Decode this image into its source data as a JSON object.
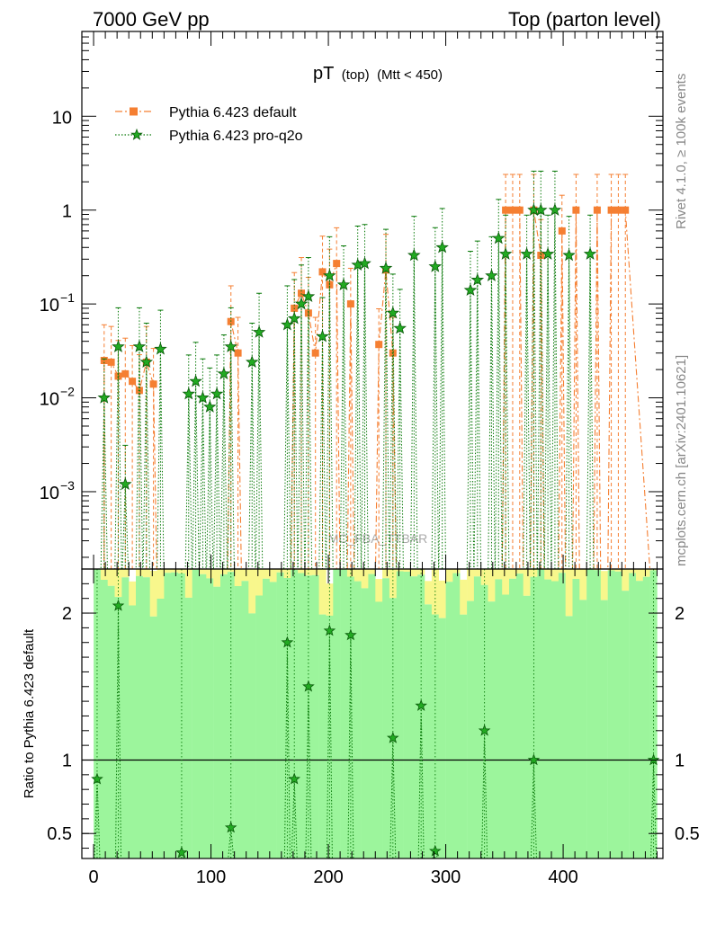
{
  "header": {
    "left": "7000 GeV pp",
    "right": "Top (parton level)"
  },
  "side_labels": {
    "rivet": "Rivet 4.1.0, ≥ 100k events",
    "mcplots": "mcplots.cern.ch [arXiv:2401.10621]"
  },
  "watermark": "MC_FBA_TTBAR",
  "colors": {
    "default": "#f57f32",
    "pro_q2o": "#0a7a0a",
    "band_green": "#9cf59c",
    "band_yellow": "#f8f78c"
  },
  "chart_data": [
    {
      "type": "scatter",
      "title": "pT",
      "title_suffix": "(top)",
      "title_cut": "(Mtt < 450)",
      "yscale": "log",
      "xlim": [
        -10,
        485
      ],
      "ylim": [
        0.00015,
        80
      ],
      "ytick_labels": [
        {
          "value": 10,
          "base": "10",
          "exp": ""
        },
        {
          "value": 1,
          "base": "1",
          "exp": ""
        },
        {
          "value": 0.1,
          "base": "10",
          "exp": "−1"
        },
        {
          "value": 0.01,
          "base": "10",
          "exp": "−2"
        },
        {
          "value": 0.001,
          "base": "10",
          "exp": "−3"
        }
      ],
      "legend": [
        "Pythia 6.423 default",
        "Pythia 6.423 pro-q2o"
      ],
      "series": [
        {
          "name": "Pythia 6.423 default",
          "style": "dashdot-square",
          "points": [
            [
              9,
              0.025
            ],
            [
              15,
              0.024
            ],
            [
              21,
              0.017
            ],
            [
              27,
              0.018
            ],
            [
              33,
              0.015
            ],
            [
              39,
              0.012
            ],
            [
              45,
              0.024
            ],
            [
              51,
              0.014
            ],
            [
              117,
              0.065
            ],
            [
              123,
              0.03
            ],
            [
              171,
              0.09
            ],
            [
              177,
              0.13
            ],
            [
              183,
              0.08
            ],
            [
              189,
              0.03
            ],
            [
              195,
              0.22
            ],
            [
              201,
              0.16
            ],
            [
              207,
              0.27
            ],
            [
              219,
              0.1
            ],
            [
              243,
              0.037
            ],
            [
              249,
              0.23
            ],
            [
              255,
              0.03
            ],
            [
              351,
              1.0
            ],
            [
              357,
              1.0
            ],
            [
              363,
              1.0
            ],
            [
              375,
              1.0
            ],
            [
              381,
              0.33
            ],
            [
              399,
              0.6
            ],
            [
              411,
              1.0
            ],
            [
              429,
              1.0
            ],
            [
              441,
              1.0
            ],
            [
              447,
              1.0
            ],
            [
              453,
              1.0
            ]
          ]
        },
        {
          "name": "Pythia 6.423 pro-q2o",
          "style": "dotted-star",
          "points": [
            [
              9,
              0.01
            ],
            [
              21,
              0.035
            ],
            [
              27,
              0.0012
            ],
            [
              39,
              0.035
            ],
            [
              45,
              0.024
            ],
            [
              57,
              0.033
            ],
            [
              81,
              0.011
            ],
            [
              87,
              0.015
            ],
            [
              93,
              0.01
            ],
            [
              99,
              0.008
            ],
            [
              105,
              0.011
            ],
            [
              111,
              0.018
            ],
            [
              117,
              0.035
            ],
            [
              135,
              0.024
            ],
            [
              141,
              0.05
            ],
            [
              165,
              0.06
            ],
            [
              171,
              0.07
            ],
            [
              177,
              0.1
            ],
            [
              183,
              0.12
            ],
            [
              195,
              0.045
            ],
            [
              201,
              0.2
            ],
            [
              213,
              0.16
            ],
            [
              225,
              0.26
            ],
            [
              231,
              0.27
            ],
            [
              249,
              0.24
            ],
            [
              255,
              0.08
            ],
            [
              261,
              0.055
            ],
            [
              273,
              0.33
            ],
            [
              291,
              0.25
            ],
            [
              297,
              0.4
            ],
            [
              321,
              0.14
            ],
            [
              327,
              0.18
            ],
            [
              339,
              0.2
            ],
            [
              345,
              0.5
            ],
            [
              351,
              0.34
            ],
            [
              369,
              0.34
            ],
            [
              375,
              1.0
            ],
            [
              381,
              1.0
            ],
            [
              387,
              0.34
            ],
            [
              393,
              1.0
            ],
            [
              405,
              0.33
            ],
            [
              423,
              0.34
            ]
          ]
        }
      ]
    },
    {
      "type": "scatter",
      "ylabel": "Ratio to Pythia 6.423 default",
      "xlim": [
        -10,
        485
      ],
      "ylim": [
        0.33,
        2.3
      ],
      "xtick_labels": [
        "0",
        "100",
        "200",
        "300",
        "400"
      ],
      "ytick_labels": [
        "0.5",
        "1",
        "2"
      ],
      "reference_line": 1,
      "series": [
        {
          "name": "Pythia 6.423 pro-q2o ratio",
          "points": [
            [
              3,
              0.87
            ],
            [
              21,
              2.05
            ],
            [
              75,
              0.37
            ],
            [
              117,
              0.54
            ],
            [
              165,
              1.8
            ],
            [
              171,
              0.87
            ],
            [
              183,
              1.5
            ],
            [
              201,
              1.88
            ],
            [
              219,
              1.85
            ],
            [
              255,
              1.15
            ],
            [
              279,
              1.37
            ],
            [
              291,
              0.38
            ],
            [
              333,
              1.2
            ],
            [
              375,
              1.0
            ],
            [
              477,
              1.0
            ]
          ]
        }
      ]
    }
  ]
}
